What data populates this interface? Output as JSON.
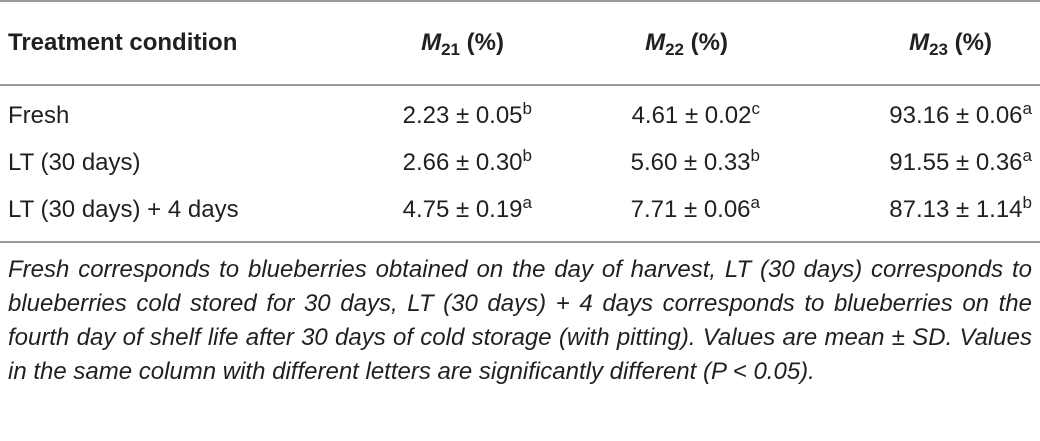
{
  "table": {
    "header": {
      "col0": "Treatment condition",
      "cols": [
        {
          "var": "M",
          "sub": "21",
          "unit": "(%)"
        },
        {
          "var": "M",
          "sub": "22",
          "unit": "(%)"
        },
        {
          "var": "M",
          "sub": "23",
          "unit": "(%)"
        }
      ]
    },
    "rows": [
      {
        "label": "Fresh",
        "cells": [
          {
            "value": "2.23 ± 0.05",
            "letter": "b"
          },
          {
            "value": "4.61 ± 0.02",
            "letter": "c"
          },
          {
            "value": "93.16 ± 0.06",
            "letter": "a"
          }
        ]
      },
      {
        "label": "LT (30 days)",
        "cells": [
          {
            "value": "2.66 ± 0.30",
            "letter": "b"
          },
          {
            "value": "5.60 ± 0.33",
            "letter": "b"
          },
          {
            "value": "91.55 ± 0.36",
            "letter": "a"
          }
        ]
      },
      {
        "label": "LT (30 days) + 4 days",
        "cells": [
          {
            "value": "4.75 ± 0.19",
            "letter": "a"
          },
          {
            "value": "7.71 ± 0.06",
            "letter": "a"
          },
          {
            "value": "87.13 ± 1.14",
            "letter": "b"
          }
        ]
      }
    ],
    "footnote": "Fresh corresponds to blueberries obtained on the day of harvest, LT (30 days) corresponds to blueberries cold stored for 30 days, LT (30 days) + 4 days corresponds to blueberries on the fourth day of shelf life after 30 days of cold storage (with pitting). Values are mean ± SD. Values in the same column with different letters are significantly different (P < 0.05)."
  }
}
